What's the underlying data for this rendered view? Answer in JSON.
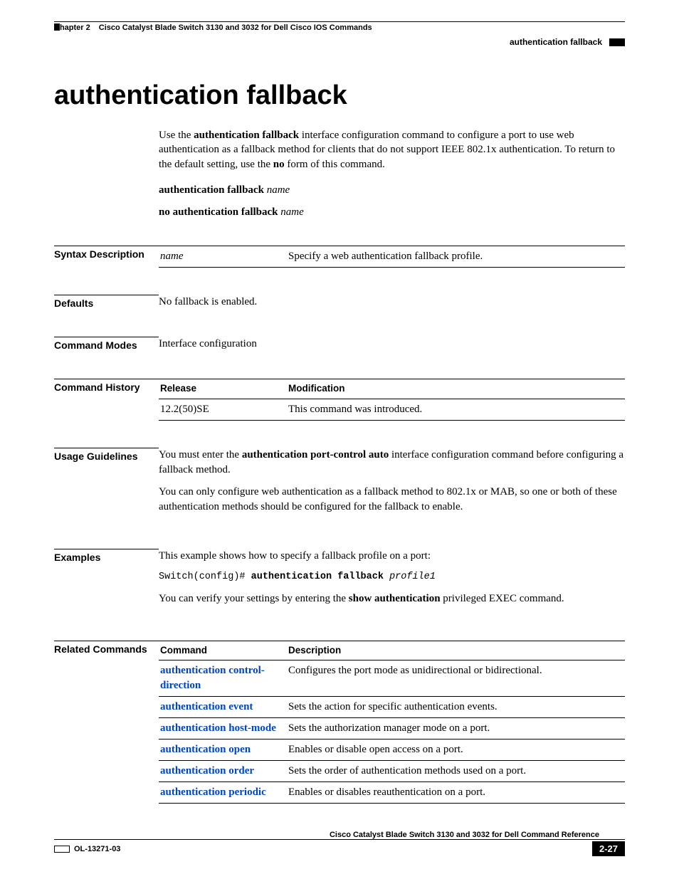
{
  "header": {
    "chapter_label": "Chapter 2",
    "chapter_title": "Cisco Catalyst Blade Switch 3130 and 3032 for Dell Cisco IOS Commands",
    "right_text": "authentication fallback"
  },
  "title": "authentication fallback",
  "intro": {
    "pre": "Use the ",
    "bold1": "authentication fallback",
    "mid": " interface configuration command to configure a port to use web authentication as a fallback method for clients that do not support IEEE 802.1x authentication. To return to the default setting, use the ",
    "bold2": "no",
    "post": " form of this command."
  },
  "syntax_lines": {
    "l1_bold": "authentication fallback",
    "l1_ital": "name",
    "l2_bold": "no authentication fallback",
    "l2_ital": "name"
  },
  "sections": {
    "syntax_desc_label": "Syntax Description",
    "defaults_label": "Defaults",
    "cmd_modes_label": "Command Modes",
    "cmd_history_label": "Command History",
    "usage_label": "Usage Guidelines",
    "examples_label": "Examples",
    "related_label": "Related Commands"
  },
  "syntax_table": {
    "param": "name",
    "desc": "Specify a web authentication fallback profile."
  },
  "defaults_text": "No fallback is enabled.",
  "cmd_modes_text": "Interface configuration",
  "history_table": {
    "h1": "Release",
    "h2": "Modification",
    "r1c1": "12.2(50)SE",
    "r1c2": "This command was introduced."
  },
  "usage": {
    "p1_pre": "You must enter the ",
    "p1_bold": "authentication port-control auto",
    "p1_post": " interface configuration command before configuring a fallback method.",
    "p2": "You can only configure web authentication as a fallback method to 802.1x or MAB, so one or both of these authentication methods should be configured for the fallback to enable."
  },
  "examples": {
    "p1": "This example shows how to specify a fallback profile on a port:",
    "code_plain": "Switch(config)# ",
    "code_bold": "authentication fallback ",
    "code_ital": "profile1",
    "p2_pre": "You can verify your settings by entering the ",
    "p2_bold": "show authentication",
    "p2_post": " privileged EXEC command."
  },
  "related_table": {
    "h1": "Command",
    "h2": "Description",
    "rows": [
      {
        "cmd": "authentication control-direction",
        "desc": "Configures the port mode as unidirectional or bidirectional."
      },
      {
        "cmd": "authentication event",
        "desc": "Sets the action for specific authentication events."
      },
      {
        "cmd": "authentication host-mode",
        "desc": "Sets the authorization manager mode on a port."
      },
      {
        "cmd": "authentication open",
        "desc": "Enables or disable open access on a port."
      },
      {
        "cmd": "authentication order",
        "desc": "Sets the order of authentication methods used on a port."
      },
      {
        "cmd": "authentication periodic",
        "desc": "Enables or disables reauthentication on a port."
      }
    ]
  },
  "footer": {
    "book_title": "Cisco Catalyst Blade Switch 3130 and 3032 for Dell Command Reference",
    "doc_id": "OL-13271-03",
    "page_num": "2-27"
  },
  "colors": {
    "link": "#0045c4",
    "text": "#000000",
    "bg": "#ffffff"
  }
}
